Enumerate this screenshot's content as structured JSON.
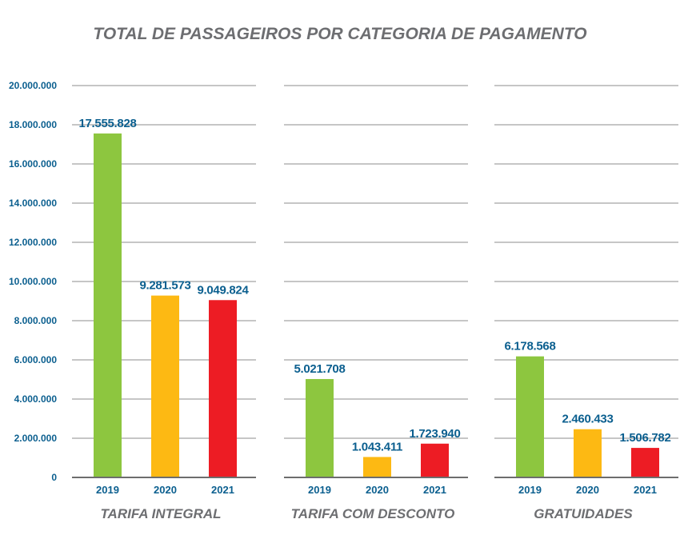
{
  "chart_data": {
    "type": "bar",
    "title": "TOTAL DE PASSAGEIROS POR CATEGORIA DE PAGAMENTO",
    "xlabel": "",
    "ylabel": "",
    "ylim": [
      0,
      20000000
    ],
    "yticks": [
      0,
      2000000,
      4000000,
      6000000,
      8000000,
      10000000,
      12000000,
      14000000,
      16000000,
      18000000,
      20000000
    ],
    "ytick_labels": [
      "0",
      "2.000.000",
      "4.000.000",
      "6.000.000",
      "8.000.000",
      "10.000.000",
      "12.000.000",
      "14.000.000",
      "16.000.000",
      "18.000.000",
      "20.000.000"
    ],
    "grid": true,
    "legend": "none",
    "categories": [
      "2019",
      "2020",
      "2021"
    ],
    "series_colors": {
      "2019": "#8dc63f",
      "2020": "#fdb913",
      "2021": "#ed1c24"
    },
    "panels": [
      {
        "name": "TARIFA INTEGRAL",
        "values": [
          17555828,
          9281573,
          9049824
        ],
        "labels": [
          "17.555.828",
          "9.281.573",
          "9.049.824"
        ]
      },
      {
        "name": "TARIFA COM DESCONTO",
        "values": [
          5021708,
          1043411,
          1723940
        ],
        "labels": [
          "5.021.708",
          "1.043.411",
          "1.723.940"
        ]
      },
      {
        "name": "GRATUIDADES",
        "values": [
          6178568,
          2460433,
          1506782
        ],
        "labels": [
          "6.178.568",
          "2.460.433",
          "1.506.782"
        ]
      }
    ]
  }
}
